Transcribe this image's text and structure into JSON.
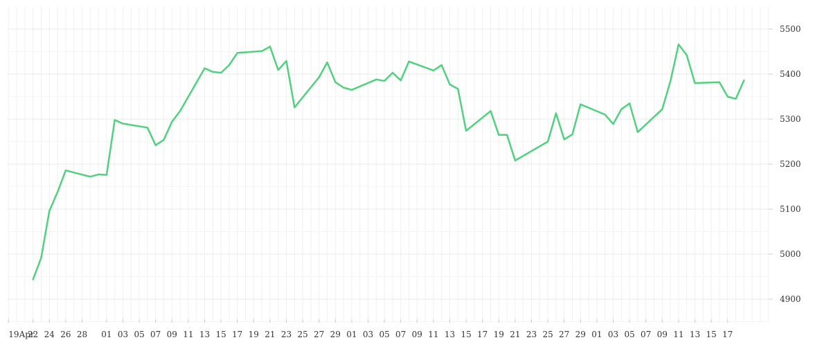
{
  "chart_data": {
    "type": "line",
    "title": "",
    "xlabel": "",
    "ylabel": "",
    "ylim": [
      4840,
      5540
    ],
    "y_ticks": [
      4900,
      5000,
      5100,
      5200,
      5300,
      5400,
      5500
    ],
    "grid": true,
    "line_color": "#4fd17e",
    "x_tick_labels": [
      "19Apr",
      "22",
      "24",
      "26",
      "28",
      "01",
      "03",
      "05",
      "07",
      "09",
      "11",
      "13",
      "15",
      "17",
      "19",
      "21",
      "23",
      "25",
      "27",
      "29",
      "01",
      "03",
      "05",
      "07",
      "09",
      "11",
      "13",
      "15",
      "17",
      "19",
      "21",
      "23",
      "25",
      "27",
      "29",
      "01",
      "03",
      "05",
      "07",
      "09",
      "11",
      "13",
      "15",
      "17"
    ],
    "series": [
      {
        "x": [
          "2024-04-22",
          "2024-04-23",
          "2024-04-24",
          "2024-04-25",
          "2024-04-26",
          "2024-04-29",
          "2024-04-30",
          "2024-05-01",
          "2024-05-02",
          "2024-05-03",
          "2024-05-06",
          "2024-05-07",
          "2024-05-08",
          "2024-05-09",
          "2024-05-10",
          "2024-05-13",
          "2024-05-14",
          "2024-05-15",
          "2024-05-16",
          "2024-05-17",
          "2024-05-20",
          "2024-05-21",
          "2024-05-22",
          "2024-05-23",
          "2024-05-24",
          "2024-05-27",
          "2024-05-28",
          "2024-05-29",
          "2024-05-30",
          "2024-05-31",
          "2024-06-03",
          "2024-06-04",
          "2024-06-05",
          "2024-06-06",
          "2024-06-07",
          "2024-06-10",
          "2024-06-11",
          "2024-06-12",
          "2024-06-13",
          "2024-06-14",
          "2024-06-17",
          "2024-06-18",
          "2024-06-19",
          "2024-06-20",
          "2024-06-24",
          "2024-06-25",
          "2024-06-26",
          "2024-06-27",
          "2024-06-28",
          "2024-07-01",
          "2024-07-02",
          "2024-07-03",
          "2024-07-04",
          "2024-07-05",
          "2024-07-08",
          "2024-07-09",
          "2024-07-10",
          "2024-07-11",
          "2024-07-12",
          "2024-07-15",
          "2024-07-16",
          "2024-07-17",
          "2024-07-18"
        ],
        "values": [
          4944,
          4992,
          5096,
          5138,
          5186,
          5172,
          5177,
          5176,
          5298,
          5290,
          5281,
          5242,
          5254,
          5294,
          5318,
          5413,
          5405,
          5403,
          5420,
          5447,
          5451,
          5461,
          5409,
          5429,
          5326,
          5393,
          5426,
          5382,
          5370,
          5365,
          5388,
          5385,
          5403,
          5386,
          5428,
          5408,
          5420,
          5377,
          5367,
          5274,
          5318,
          5265,
          5265,
          5208,
          5250,
          5313,
          5255,
          5266,
          5333,
          5310,
          5289,
          5322,
          5335,
          5271,
          5322,
          5384,
          5466,
          5442,
          5380,
          5382,
          5350,
          5345,
          5386
        ]
      }
    ]
  }
}
